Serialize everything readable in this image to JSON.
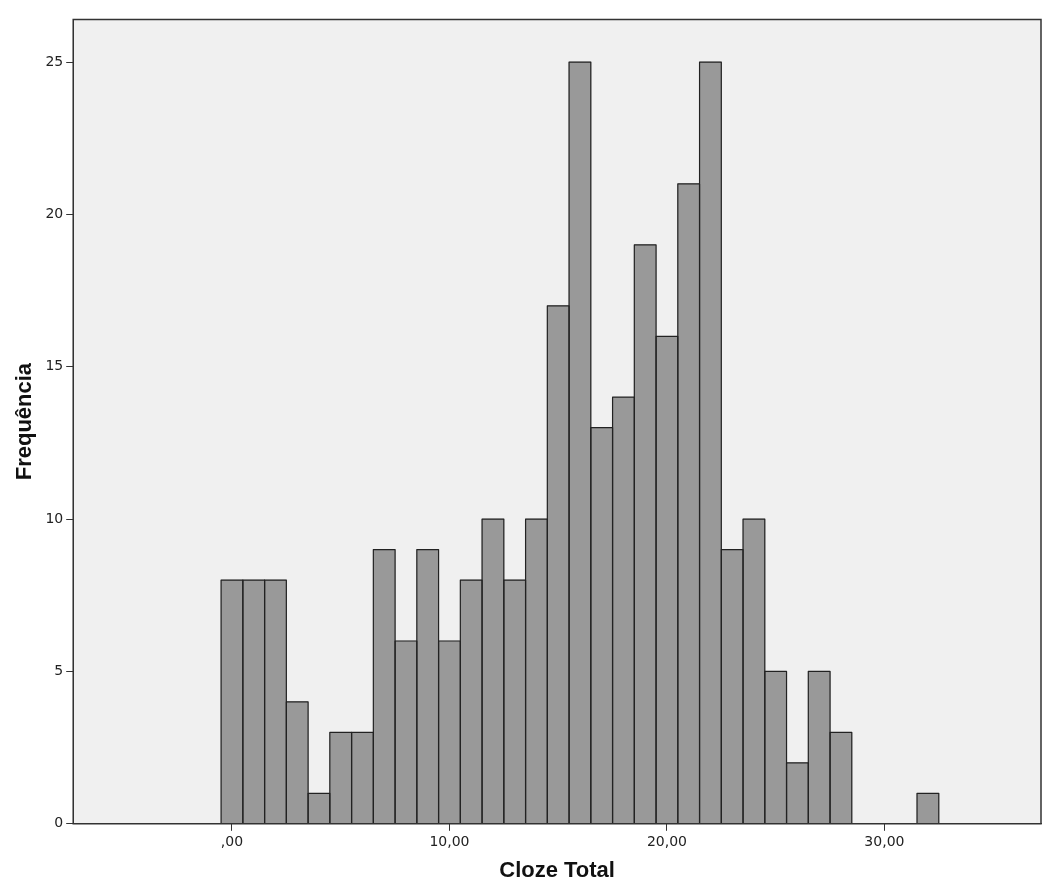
{
  "chart_data": {
    "type": "histogram",
    "xlabel": "Cloze Total",
    "ylabel": "Frequência",
    "bins": [
      -0.5,
      0.5,
      1.5,
      2.5,
      3.5,
      4.5,
      5.5,
      6.5,
      7.5,
      8.5,
      9.5,
      10.5,
      11.5,
      12.5,
      13.5,
      14.5,
      15.5,
      16.5,
      17.5,
      18.5,
      19.5,
      20.5,
      21.5,
      22.5,
      23.5,
      24.5,
      25.5,
      26.5,
      27.5,
      28.5,
      29.5,
      30.5,
      31.5,
      32.5
    ],
    "values": [
      8,
      8,
      8,
      4,
      1,
      3,
      3,
      9,
      6,
      9,
      6,
      8,
      10,
      8,
      10,
      17,
      25,
      13,
      14,
      19,
      16,
      21,
      25,
      9,
      10,
      5,
      2,
      5,
      3,
      0,
      0,
      0,
      1
    ],
    "color": "#999999",
    "xlim": [
      -7.3,
      37.2
    ],
    "xticks": [
      {
        "value": 0,
        "label": ",00"
      },
      {
        "value": 10,
        "label": "10,00"
      },
      {
        "value": 20,
        "label": "20,00"
      },
      {
        "value": 30,
        "label": "30,00"
      }
    ],
    "ylim": [
      0,
      26.4
    ],
    "yticks": [
      0,
      5,
      10,
      15,
      20,
      25
    ],
    "grid": false,
    "legend": false
  }
}
